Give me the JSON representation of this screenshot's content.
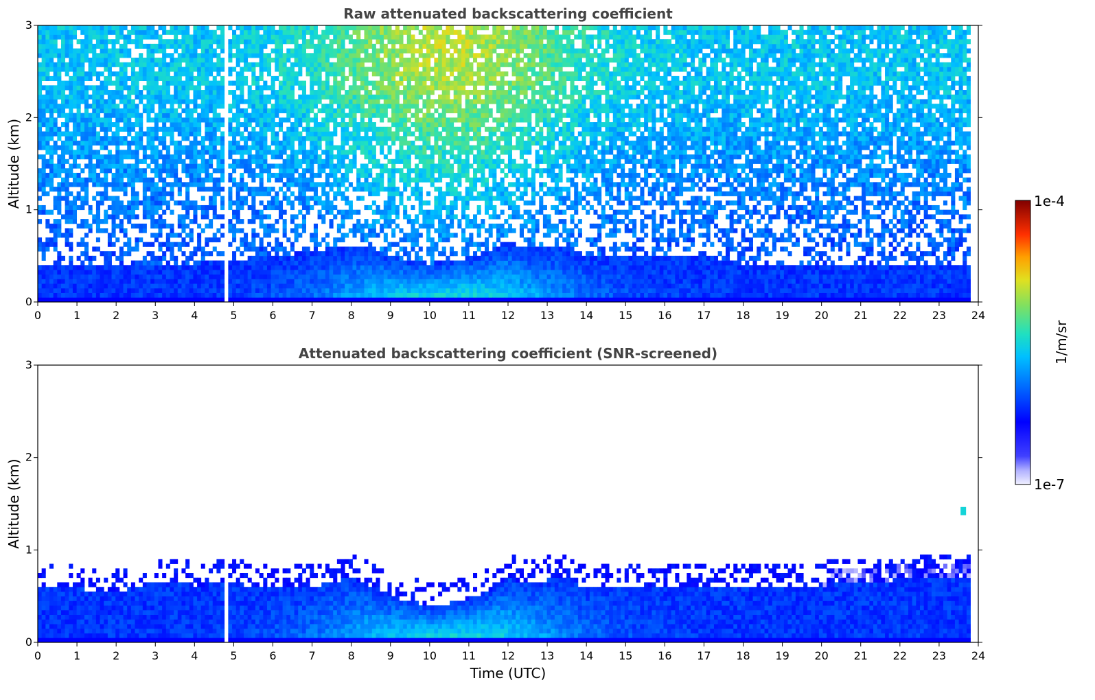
{
  "chart_data": [
    {
      "type": "heatmap",
      "title": "Raw attenuated backscattering coefficient",
      "xlabel": "",
      "ylabel": "Altitude (km)",
      "xlim": [
        0,
        24
      ],
      "ylim": [
        0,
        3
      ],
      "xticks": [
        "0",
        "1",
        "2",
        "3",
        "4",
        "5",
        "6",
        "7",
        "8",
        "9",
        "10",
        "11",
        "12",
        "13",
        "14",
        "15",
        "16",
        "17",
        "18",
        "19",
        "20",
        "21",
        "22",
        "23",
        "24"
      ],
      "yticks": [
        "0",
        "1",
        "2",
        "3"
      ],
      "data_end_hour": 23.8,
      "dropout_hour": 4.8,
      "boundary_layer_top_km": [
        [
          0,
          0.4
        ],
        [
          2,
          0.4
        ],
        [
          4,
          0.42
        ],
        [
          5,
          0.45
        ],
        [
          6,
          0.5
        ],
        [
          7,
          0.55
        ],
        [
          8,
          0.62
        ],
        [
          8.5,
          0.6
        ],
        [
          9,
          0.5
        ],
        [
          9.5,
          0.45
        ],
        [
          10,
          0.42
        ],
        [
          10.5,
          0.45
        ],
        [
          11,
          0.48
        ],
        [
          11.5,
          0.55
        ],
        [
          12,
          0.66
        ],
        [
          12.5,
          0.58
        ],
        [
          13,
          0.6
        ],
        [
          13.5,
          0.62
        ],
        [
          14,
          0.5
        ],
        [
          15,
          0.5
        ],
        [
          16,
          0.48
        ],
        [
          17,
          0.5
        ],
        [
          18,
          0.42
        ],
        [
          19,
          0.4
        ],
        [
          20,
          0.4
        ],
        [
          22,
          0.4
        ],
        [
          23.8,
          0.4
        ]
      ],
      "noise_regime": "noisy"
    },
    {
      "type": "heatmap",
      "title": "Attenuated backscattering coefficient (SNR-screened)",
      "xlabel": "Time (UTC)",
      "ylabel": "Altitude (km)",
      "xlim": [
        0,
        24
      ],
      "ylim": [
        0,
        3
      ],
      "xticks": [
        "0",
        "1",
        "2",
        "3",
        "4",
        "5",
        "6",
        "7",
        "8",
        "9",
        "10",
        "11",
        "12",
        "13",
        "14",
        "15",
        "16",
        "17",
        "18",
        "19",
        "20",
        "21",
        "22",
        "23",
        "24"
      ],
      "yticks": [
        "0",
        "1",
        "2",
        "3"
      ],
      "data_end_hour": 23.8,
      "dropout_hour": 4.8,
      "boundary_layer_top_km": [
        [
          0,
          0.6
        ],
        [
          1,
          0.58
        ],
        [
          2,
          0.55
        ],
        [
          3,
          0.65
        ],
        [
          4,
          0.62
        ],
        [
          5,
          0.64
        ],
        [
          6,
          0.58
        ],
        [
          7,
          0.6
        ],
        [
          8,
          0.7
        ],
        [
          8.5,
          0.62
        ],
        [
          9,
          0.5
        ],
        [
          9.5,
          0.45
        ],
        [
          10,
          0.4
        ],
        [
          10.5,
          0.42
        ],
        [
          11,
          0.48
        ],
        [
          11.5,
          0.55
        ],
        [
          12,
          0.7
        ],
        [
          12.5,
          0.62
        ],
        [
          13,
          0.68
        ],
        [
          13.5,
          0.7
        ],
        [
          14,
          0.58
        ],
        [
          15,
          0.6
        ],
        [
          16,
          0.6
        ],
        [
          17,
          0.6
        ],
        [
          18,
          0.6
        ],
        [
          19,
          0.62
        ],
        [
          20,
          0.62
        ],
        [
          21,
          0.65
        ],
        [
          22,
          0.68
        ],
        [
          23,
          0.7
        ],
        [
          23.8,
          0.7
        ]
      ],
      "isolated_feature": {
        "hour": 23.6,
        "altitude_km": 1.42
      },
      "noise_regime": "screened"
    }
  ],
  "colorbar": {
    "label": "1/m/sr",
    "min_label": "1e-7",
    "max_label": "1e-4",
    "scale": "log",
    "colormap": "jet-like (white-blue at low, dark red at high)"
  }
}
